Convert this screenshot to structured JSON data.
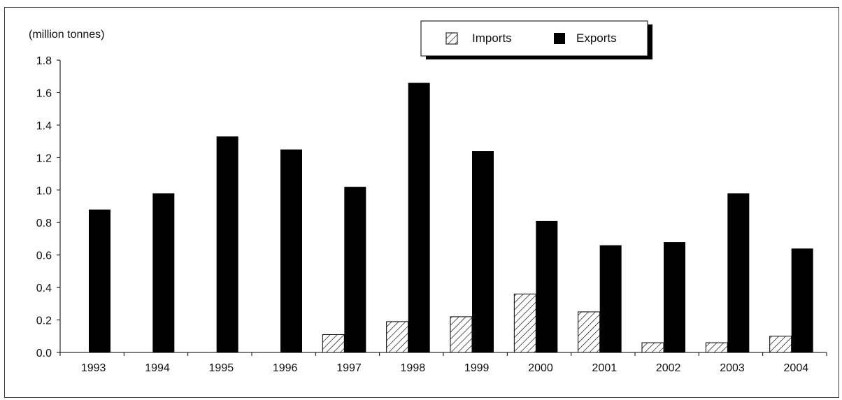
{
  "chart_data": {
    "type": "bar",
    "unit_label": "(million tonnes)",
    "categories": [
      "1993",
      "1994",
      "1995",
      "1996",
      "1997",
      "1998",
      "1999",
      "2000",
      "2001",
      "2002",
      "2003",
      "2004"
    ],
    "series": [
      {
        "name": "Imports",
        "pattern": "hatch",
        "color": "#000000",
        "values": [
          0.0,
          0.0,
          0.0,
          0.0,
          0.11,
          0.19,
          0.22,
          0.36,
          0.25,
          0.06,
          0.06,
          0.1
        ]
      },
      {
        "name": "Exports",
        "pattern": "solid",
        "color": "#000000",
        "values": [
          0.88,
          0.98,
          1.33,
          1.25,
          1.02,
          1.66,
          1.24,
          0.81,
          0.66,
          0.68,
          0.98,
          0.64
        ]
      }
    ],
    "y_ticks": [
      "0.0",
      "0.2",
      "0.4",
      "0.6",
      "0.8",
      "1.0",
      "1.2",
      "1.4",
      "1.6",
      "1.8"
    ],
    "ylim": [
      0,
      1.8
    ],
    "grid": false,
    "legend_position": "top-center"
  }
}
